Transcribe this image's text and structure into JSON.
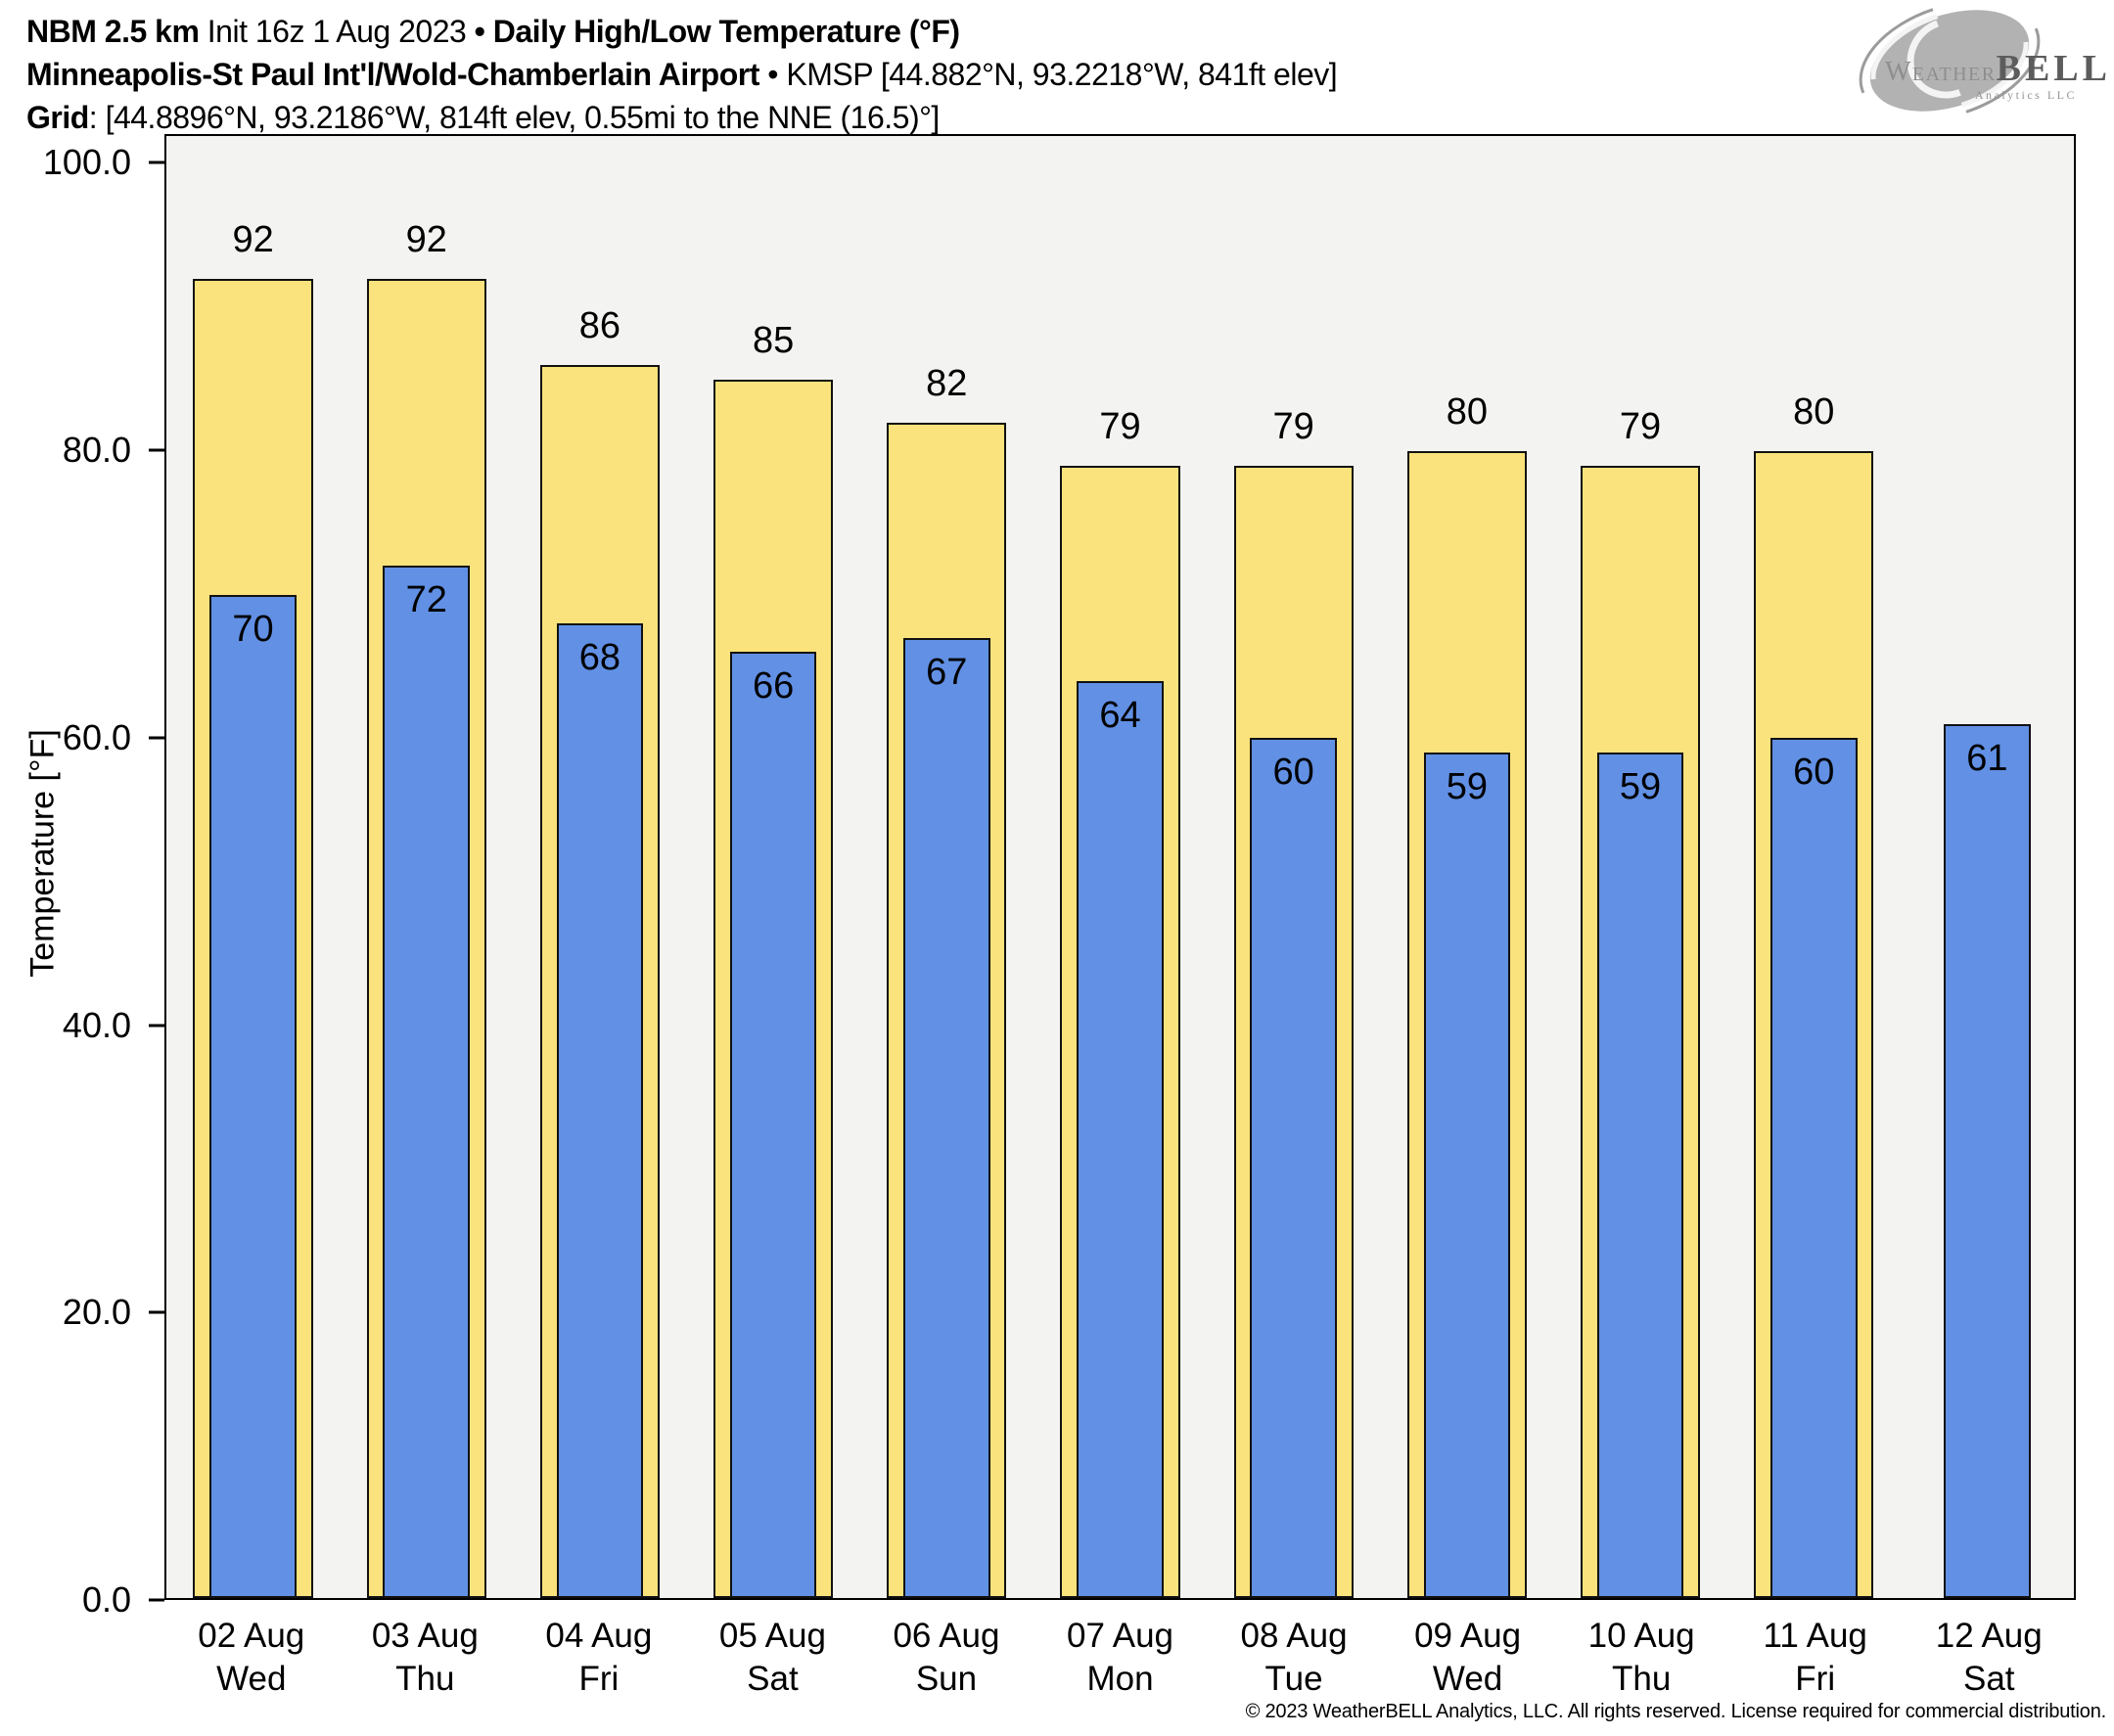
{
  "header": {
    "line1": {
      "model": "NBM 2.5 km",
      "init": "Init 16z 1 Aug 2023",
      "sep": "•",
      "product": "Daily High/Low Temperature (°F)"
    },
    "line2": {
      "station": "Minneapolis-St Paul Int'l/Wold-Chamberlain Airport",
      "sep": "•",
      "meta": "KMSP [44.882°N, 93.2218°W, 841ft elev]"
    },
    "line3": {
      "label": "Grid",
      "value": ": [44.8896°N, 93.2186°W, 814ft elev, 0.55mi to the NNE (16.5)°]"
    }
  },
  "logo": {
    "weather": "Weather",
    "bell": "BELL",
    "subtext": "Analytics LLC"
  },
  "chart_data": {
    "type": "bar",
    "title": "Daily High/Low Temperature (°F)",
    "ylabel": "Temperature [°F]",
    "ylim": [
      0,
      102
    ],
    "yticks": [
      0,
      20,
      40,
      60,
      80,
      100
    ],
    "grid": false,
    "legend": "none",
    "plot_bg": "#F3F3F1",
    "categories": [
      {
        "date": "02 Aug",
        "day": "Wed"
      },
      {
        "date": "03 Aug",
        "day": "Thu"
      },
      {
        "date": "04 Aug",
        "day": "Fri"
      },
      {
        "date": "05 Aug",
        "day": "Sat"
      },
      {
        "date": "06 Aug",
        "day": "Sun"
      },
      {
        "date": "07 Aug",
        "day": "Mon"
      },
      {
        "date": "08 Aug",
        "day": "Tue"
      },
      {
        "date": "09 Aug",
        "day": "Wed"
      },
      {
        "date": "10 Aug",
        "day": "Thu"
      },
      {
        "date": "11 Aug",
        "day": "Fri"
      },
      {
        "date": "12 Aug",
        "day": "Sat"
      }
    ],
    "series": [
      {
        "name": "High",
        "color": "#FAE37C",
        "values": [
          92,
          92,
          86,
          85,
          82,
          79,
          79,
          80,
          79,
          80,
          null
        ]
      },
      {
        "name": "Low",
        "color": "#6190E4",
        "values": [
          70,
          72,
          68,
          66,
          67,
          64,
          60,
          59,
          59,
          60,
          61
        ]
      }
    ]
  },
  "footer": {
    "copyright": "© 2023 WeatherBELL Analytics, LLC. All rights reserved. License required for commercial distribution."
  }
}
